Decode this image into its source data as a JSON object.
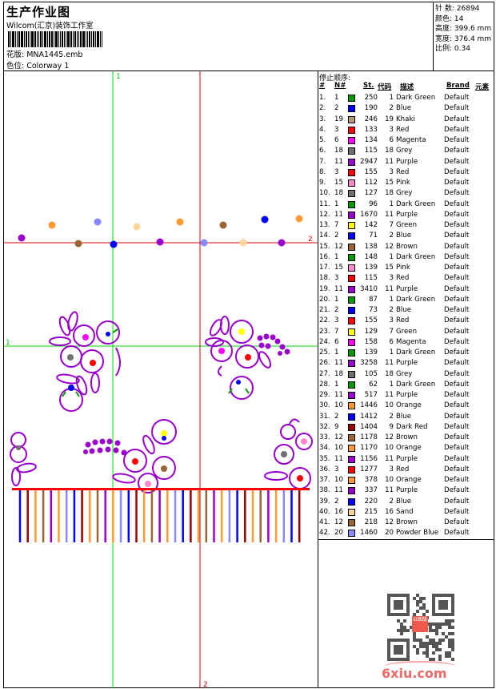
{
  "header": {
    "title": "生产作业图",
    "company": "Wilcom(汇京)装饰工作室",
    "design_label": "花版:",
    "design_value": "MNA1445.emb",
    "colorway_label": "色位:",
    "colorway_value": "Colorway 1"
  },
  "stats": {
    "stitches_label": "针 数:",
    "stitches": "26894",
    "colors_label": "颜色:",
    "colors": "14",
    "height_label": "高度:",
    "height": "399.6 mm",
    "width_label": "宽度:",
    "width": "376.4 mm",
    "scale_label": "比例:",
    "scale": "0.34"
  },
  "canvas": {
    "guide_green_label": "1",
    "guide_red_label": "2",
    "guide_colors": {
      "green": "#00dd00",
      "red": "#dd0000"
    }
  },
  "stop_sequence": {
    "title": "停止顺序:",
    "columns": [
      "#",
      "N#",
      "St.",
      "代码",
      "描述",
      "Brand",
      "元素"
    ],
    "rows": [
      {
        "idx": "1.",
        "n": "1",
        "color": "#009900",
        "st": "250",
        "code": "1",
        "desc": "Dark Green",
        "brand": "Default"
      },
      {
        "idx": "2.",
        "n": "2",
        "color": "#0000ff",
        "st": "190",
        "code": "2",
        "desc": "Blue",
        "brand": "Default"
      },
      {
        "idx": "3.",
        "n": "19",
        "color": "#b09a77",
        "st": "246",
        "code": "19",
        "desc": "Khaki",
        "brand": "Default"
      },
      {
        "idx": "4.",
        "n": "3",
        "color": "#ff0000",
        "st": "133",
        "code": "3",
        "desc": "Red",
        "brand": "Default"
      },
      {
        "idx": "5.",
        "n": "6",
        "color": "#ff00ff",
        "st": "134",
        "code": "6",
        "desc": "Magenta",
        "brand": "Default"
      },
      {
        "idx": "6.",
        "n": "18",
        "color": "#707070",
        "st": "115",
        "code": "18",
        "desc": "Grey",
        "brand": "Default"
      },
      {
        "idx": "7.",
        "n": "11",
        "color": "#9900cc",
        "st": "2947",
        "code": "11",
        "desc": "Purple",
        "brand": "Default"
      },
      {
        "idx": "8.",
        "n": "3",
        "color": "#ff0000",
        "st": "155",
        "code": "3",
        "desc": "Red",
        "brand": "Default"
      },
      {
        "idx": "9.",
        "n": "15",
        "color": "#ff88cc",
        "st": "112",
        "code": "15",
        "desc": "Pink",
        "brand": "Default"
      },
      {
        "idx": "10.",
        "n": "18",
        "color": "#707070",
        "st": "127",
        "code": "18",
        "desc": "Grey",
        "brand": "Default"
      },
      {
        "idx": "11.",
        "n": "1",
        "color": "#009900",
        "st": "96",
        "code": "1",
        "desc": "Dark Green",
        "brand": "Default"
      },
      {
        "idx": "12.",
        "n": "11",
        "color": "#9900cc",
        "st": "1670",
        "code": "11",
        "desc": "Purple",
        "brand": "Default"
      },
      {
        "idx": "13.",
        "n": "7",
        "color": "#ffff00",
        "st": "142",
        "code": "7",
        "desc": "Green",
        "brand": "Default"
      },
      {
        "idx": "14.",
        "n": "2",
        "color": "#0000ff",
        "st": "71",
        "code": "2",
        "desc": "Blue",
        "brand": "Default"
      },
      {
        "idx": "15.",
        "n": "12",
        "color": "#996633",
        "st": "138",
        "code": "12",
        "desc": "Brown",
        "brand": "Default"
      },
      {
        "idx": "16.",
        "n": "1",
        "color": "#009900",
        "st": "148",
        "code": "1",
        "desc": "Dark Green",
        "brand": "Default"
      },
      {
        "idx": "17.",
        "n": "15",
        "color": "#ff88cc",
        "st": "139",
        "code": "15",
        "desc": "Pink",
        "brand": "Default"
      },
      {
        "idx": "18.",
        "n": "3",
        "color": "#ff0000",
        "st": "115",
        "code": "3",
        "desc": "Red",
        "brand": "Default"
      },
      {
        "idx": "19.",
        "n": "11",
        "color": "#9900cc",
        "st": "3410",
        "code": "11",
        "desc": "Purple",
        "brand": "Default"
      },
      {
        "idx": "20.",
        "n": "1",
        "color": "#009900",
        "st": "87",
        "code": "1",
        "desc": "Dark Green",
        "brand": "Default"
      },
      {
        "idx": "21.",
        "n": "2",
        "color": "#0000ff",
        "st": "73",
        "code": "2",
        "desc": "Blue",
        "brand": "Default"
      },
      {
        "idx": "22.",
        "n": "3",
        "color": "#ff0000",
        "st": "155",
        "code": "3",
        "desc": "Red",
        "brand": "Default"
      },
      {
        "idx": "23.",
        "n": "7",
        "color": "#ffff00",
        "st": "129",
        "code": "7",
        "desc": "Green",
        "brand": "Default"
      },
      {
        "idx": "24.",
        "n": "6",
        "color": "#ff00ff",
        "st": "158",
        "code": "6",
        "desc": "Magenta",
        "brand": "Default"
      },
      {
        "idx": "25.",
        "n": "1",
        "color": "#009900",
        "st": "139",
        "code": "1",
        "desc": "Dark Green",
        "brand": "Default"
      },
      {
        "idx": "26.",
        "n": "11",
        "color": "#9900cc",
        "st": "3258",
        "code": "11",
        "desc": "Purple",
        "brand": "Default"
      },
      {
        "idx": "27.",
        "n": "18",
        "color": "#707070",
        "st": "105",
        "code": "18",
        "desc": "Grey",
        "brand": "Default"
      },
      {
        "idx": "28.",
        "n": "1",
        "color": "#009900",
        "st": "62",
        "code": "1",
        "desc": "Dark Green",
        "brand": "Default"
      },
      {
        "idx": "29.",
        "n": "11",
        "color": "#9900cc",
        "st": "517",
        "code": "11",
        "desc": "Purple",
        "brand": "Default"
      },
      {
        "idx": "30.",
        "n": "10",
        "color": "#ff9933",
        "st": "1446",
        "code": "10",
        "desc": "Orange",
        "brand": "Default"
      },
      {
        "idx": "31.",
        "n": "2",
        "color": "#0000ff",
        "st": "1412",
        "code": "2",
        "desc": "Blue",
        "brand": "Default"
      },
      {
        "idx": "32.",
        "n": "9",
        "color": "#990000",
        "st": "1404",
        "code": "9",
        "desc": "Dark Red",
        "brand": "Default"
      },
      {
        "idx": "33.",
        "n": "12",
        "color": "#996633",
        "st": "1178",
        "code": "12",
        "desc": "Brown",
        "brand": "Default"
      },
      {
        "idx": "34.",
        "n": "10",
        "color": "#ff9933",
        "st": "1170",
        "code": "10",
        "desc": "Orange",
        "brand": "Default"
      },
      {
        "idx": "35.",
        "n": "11",
        "color": "#9900cc",
        "st": "1156",
        "code": "11",
        "desc": "Purple",
        "brand": "Default"
      },
      {
        "idx": "36.",
        "n": "3",
        "color": "#ff0000",
        "st": "1277",
        "code": "3",
        "desc": "Red",
        "brand": "Default"
      },
      {
        "idx": "37.",
        "n": "10",
        "color": "#ff9933",
        "st": "378",
        "code": "10",
        "desc": "Orange",
        "brand": "Default"
      },
      {
        "idx": "38.",
        "n": "11",
        "color": "#9900cc",
        "st": "337",
        "code": "11",
        "desc": "Purple",
        "brand": "Default"
      },
      {
        "idx": "39.",
        "n": "2",
        "color": "#0000ff",
        "st": "220",
        "code": "2",
        "desc": "Blue",
        "brand": "Default"
      },
      {
        "idx": "40.",
        "n": "16",
        "color": "#ffd699",
        "st": "215",
        "code": "16",
        "desc": "Sand",
        "brand": "Default"
      },
      {
        "idx": "41.",
        "n": "12",
        "color": "#996633",
        "st": "218",
        "code": "12",
        "desc": "Brown",
        "brand": "Default"
      },
      {
        "idx": "42.",
        "n": "20",
        "color": "#8888ff",
        "st": "1460",
        "code": "20",
        "desc": "Powder Blue",
        "brand": "Default"
      }
    ]
  },
  "footer": {
    "qr_stamp": "以图版",
    "site_logo": "6xiu.com"
  }
}
